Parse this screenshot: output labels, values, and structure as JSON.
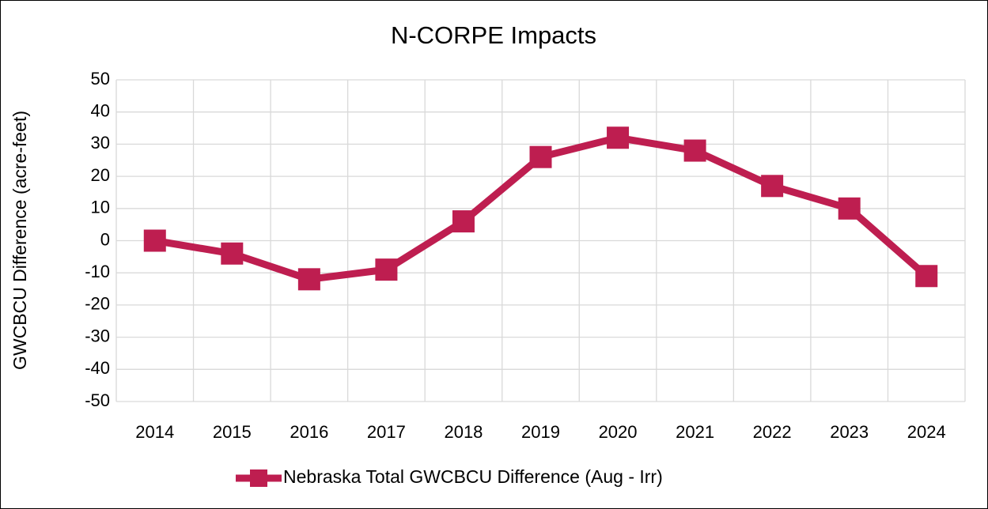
{
  "chart_data": {
    "type": "line",
    "title": "N-CORPE Impacts",
    "y_label": "GWCBCU Difference (acre-feet)",
    "categories": [
      "2014",
      "2015",
      "2016",
      "2017",
      "2018",
      "2019",
      "2020",
      "2021",
      "2022",
      "2023",
      "2024"
    ],
    "series": [
      {
        "name": "Nebraska Total GWCBCU Difference (Aug - Irr)",
        "color": "#be1e50",
        "values": [
          0,
          -4,
          -12,
          -9,
          6,
          26,
          32,
          28,
          17,
          10,
          -11
        ]
      }
    ],
    "ylim": [
      -50,
      50
    ],
    "yticks": [
      -50,
      -40,
      -30,
      -20,
      -10,
      0,
      10,
      20,
      30,
      40,
      50
    ],
    "grid": true,
    "legend": "bottom"
  }
}
